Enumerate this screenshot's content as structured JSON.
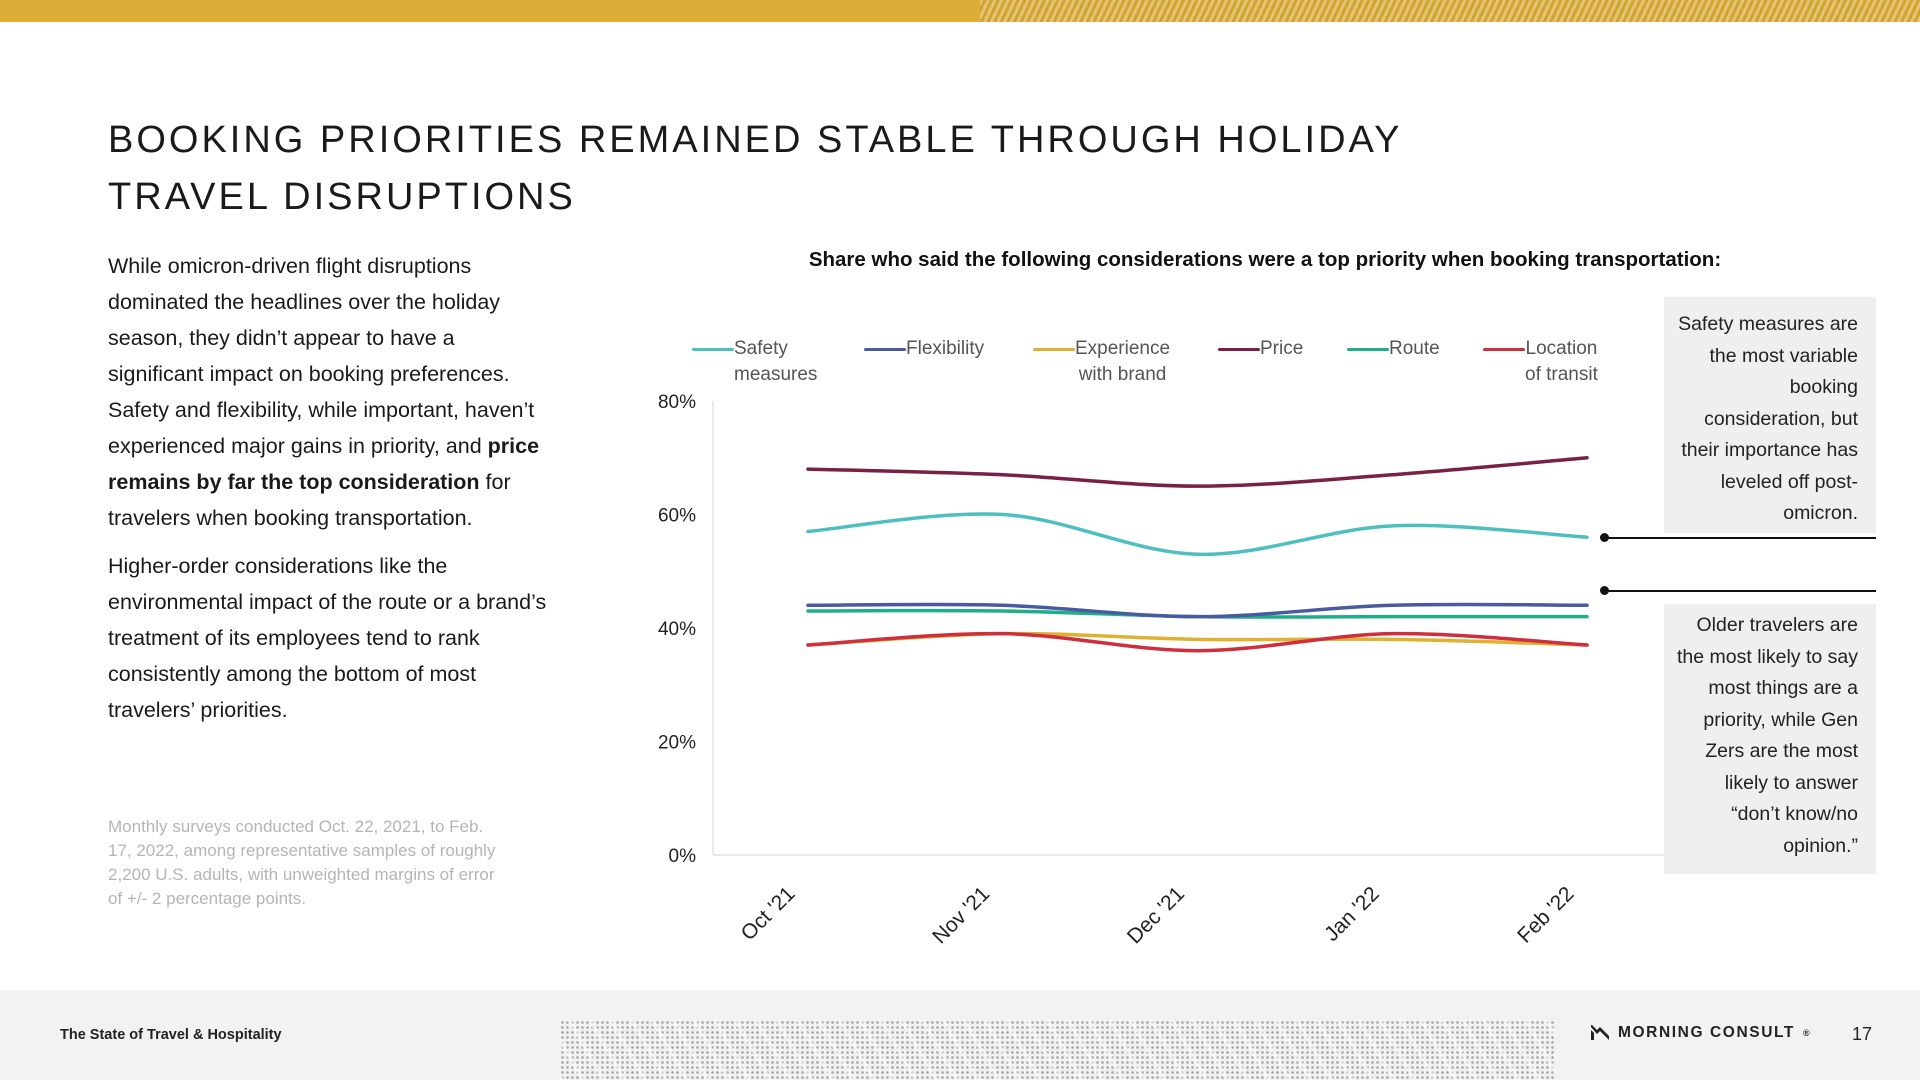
{
  "title": "BOOKING PRIORITIES REMAINED STABLE THROUGH HOLIDAY TRAVEL DISRUPTIONS",
  "body": {
    "p1_a": "While omicron-driven flight disruptions dominated the headlines over the holiday season, they didn’t appear to have a significant impact on booking preferences. Safety and flexibility, while important, haven’t experienced major gains in priority, and ",
    "p1_bold": "price remains by far the top consideration",
    "p1_b": " for travelers when booking transportation.",
    "p2": "Higher-order considerations like the environmental impact of the route or a brand’s treatment of its employees tend to rank consistently among the bottom of most travelers’ priorities."
  },
  "source_note": "Monthly surveys conducted Oct. 22, 2021, to Feb. 17, 2022, among representative samples of roughly 2,200 U.S. adults, with unweighted margins of error of +/- 2 percentage points.",
  "callouts": {
    "safety": "Safety measures are the most variable booking consideration, but their importance has leveled off post-omicron.",
    "older": "Older travelers are the most likely to say most things are a priority, while Gen Zers are the most likely to answer “don’t know/no opinion.”"
  },
  "footer": {
    "left": "The State of Travel & Hospitality",
    "brand": "MORNING CONSULT",
    "brand_mark": "®",
    "page": "17"
  },
  "colors": {
    "accent": "#dcae38",
    "safety": "#4dbfbf",
    "flexibility": "#4a5aa0",
    "experience": "#e0b030",
    "price": "#7a1f45",
    "route": "#1fae88",
    "location": "#cf2e3e"
  },
  "chart_data": {
    "type": "line",
    "title": "Share who said the following considerations were a top priority when booking transportation:",
    "categories": [
      "Oct '21",
      "Nov '21",
      "Dec '21",
      "Jan '22",
      "Feb '22"
    ],
    "y_ticks": [
      "0%",
      "20%",
      "40%",
      "60%",
      "80%"
    ],
    "ylim": [
      0,
      80
    ],
    "xlabel": "",
    "ylabel": "",
    "legend_position": "top",
    "series": [
      {
        "key": "safety",
        "name": "Safety measures",
        "label_lines": [
          "Safety",
          "measures"
        ],
        "color": "#4dbfbf",
        "values": [
          57,
          60,
          53,
          58,
          56
        ]
      },
      {
        "key": "flexibility",
        "name": "Flexibility",
        "label_lines": [
          "Flexibility"
        ],
        "color": "#4a5aa0",
        "values": [
          44,
          44,
          42,
          44,
          44
        ]
      },
      {
        "key": "experience",
        "name": "Experience with brand",
        "label_lines": [
          "Experience",
          "with brand"
        ],
        "color": "#e0b030",
        "values": [
          37,
          39,
          38,
          38,
          37
        ]
      },
      {
        "key": "price",
        "name": "Price",
        "label_lines": [
          "Price"
        ],
        "color": "#7a1f45",
        "values": [
          68,
          67,
          65,
          67,
          70
        ]
      },
      {
        "key": "route",
        "name": "Route",
        "label_lines": [
          "Route"
        ],
        "color": "#1fae88",
        "values": [
          43,
          43,
          42,
          42,
          42
        ]
      },
      {
        "key": "location",
        "name": "Location of transit",
        "label_lines": [
          "Location",
          "of transit"
        ],
        "color": "#cf2e3e",
        "values": [
          37,
          39,
          36,
          39,
          37
        ]
      }
    ]
  }
}
